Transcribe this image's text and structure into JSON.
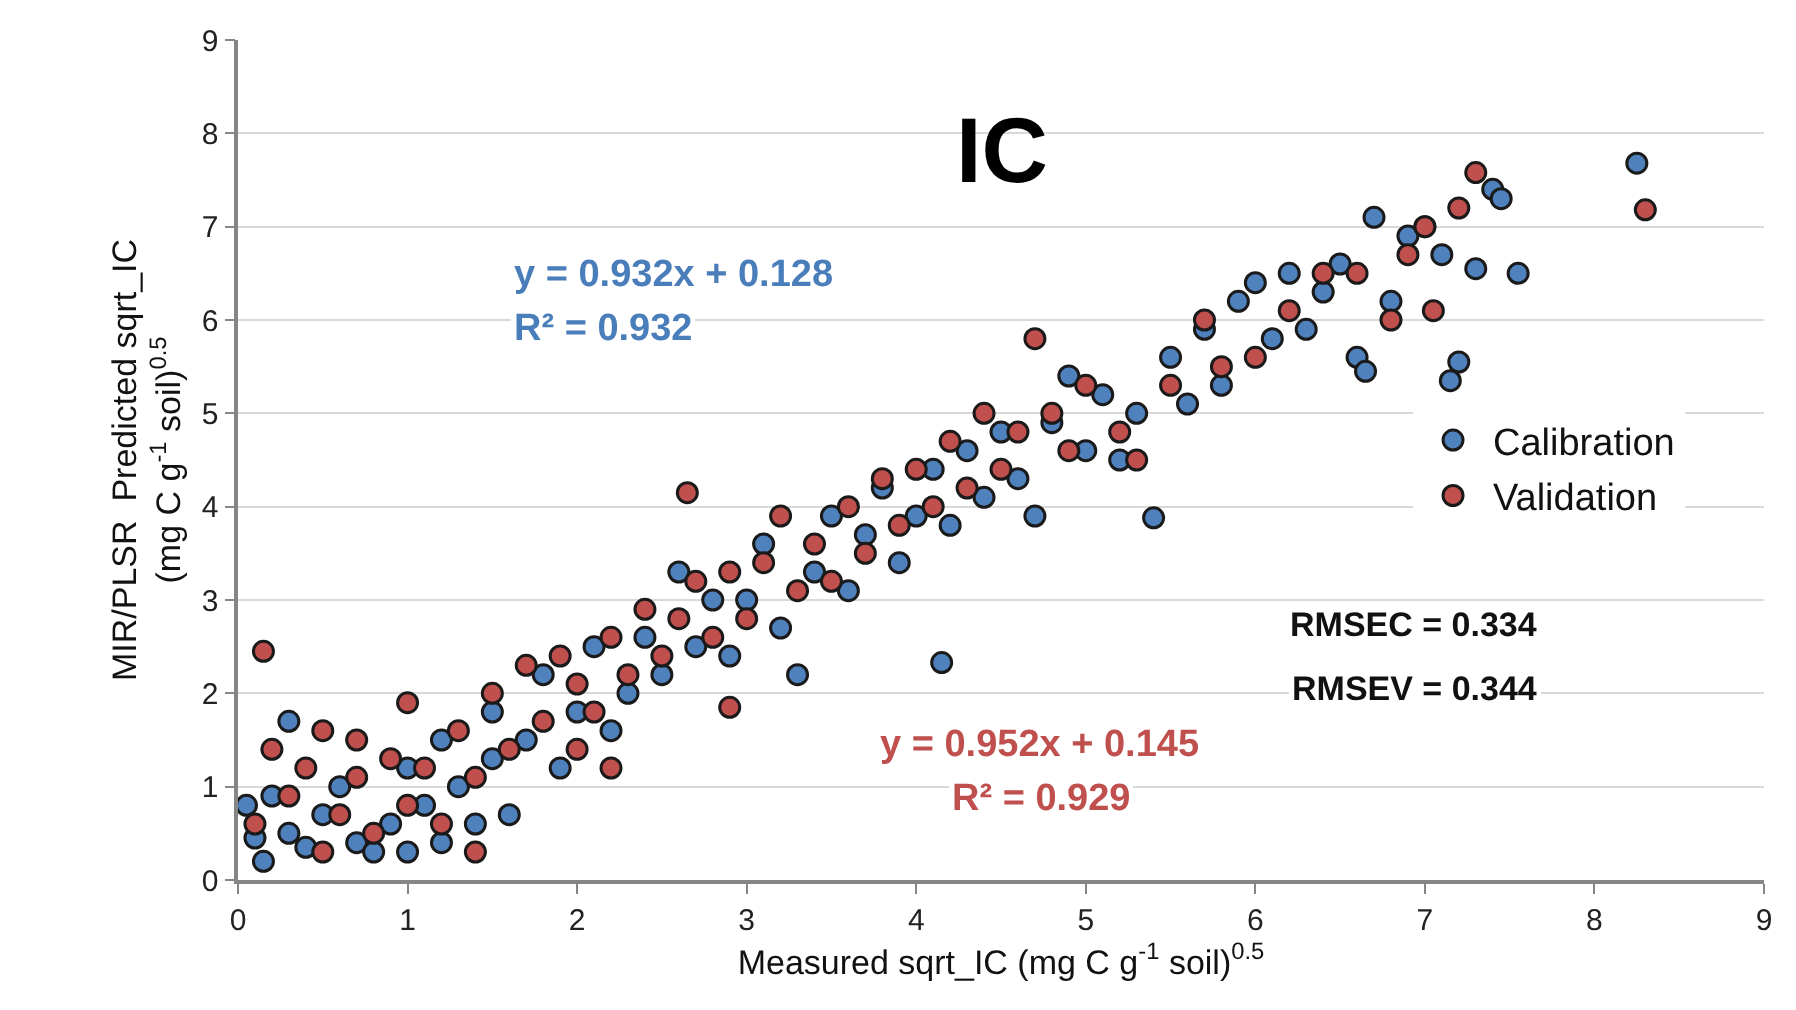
{
  "chart_data": {
    "type": "scatter",
    "title": "IC",
    "xlabel": "Measured sqrt_IC (mg C g$^{-1}$ soil)$^{0.5}$",
    "ylabel": "MIR/PLSR  Predicted sqrt_IC\n(mg C g$^{-1}$ soil)$^{0.5}$",
    "xlim": [
      0,
      9
    ],
    "ylim": [
      0,
      9
    ],
    "xticks": [
      0,
      1,
      2,
      3,
      4,
      5,
      6,
      7,
      8,
      9
    ],
    "yticks": [
      0,
      1,
      2,
      3,
      4,
      5,
      6,
      7,
      8,
      9
    ],
    "grid": "y",
    "legend": "right",
    "marker": "circle",
    "annotations": [
      "y = 0.932x + 0.128",
      "R² = 0.932",
      "y = 0.952x + 0.145",
      "R² = 0.929",
      "RMSEC = 0.334",
      "RMSEV = 0.344"
    ],
    "series": [
      {
        "name": "Calibration",
        "color": "#4f81bd",
        "x": [
          0.05,
          0.15,
          0.1,
          0.2,
          0.3,
          0.3,
          0.4,
          0.5,
          0.6,
          0.7,
          0.8,
          0.9,
          1.0,
          1.0,
          1.1,
          1.2,
          1.2,
          1.3,
          1.4,
          1.5,
          1.5,
          1.6,
          1.7,
          1.8,
          1.9,
          2.0,
          2.1,
          2.2,
          2.3,
          2.4,
          2.5,
          2.6,
          2.7,
          2.8,
          2.9,
          3.0,
          3.1,
          3.2,
          3.3,
          3.4,
          3.5,
          3.6,
          3.7,
          3.8,
          3.9,
          4.0,
          4.1,
          4.15,
          4.2,
          4.3,
          4.4,
          4.5,
          4.6,
          4.7,
          4.8,
          4.9,
          5.0,
          5.1,
          5.2,
          5.3,
          5.4,
          5.5,
          5.6,
          5.7,
          5.8,
          5.9,
          6.0,
          6.1,
          6.2,
          6.3,
          6.4,
          6.5,
          6.6,
          6.65,
          6.7,
          6.8,
          6.9,
          7.0,
          7.1,
          7.15,
          7.2,
          7.3,
          7.4,
          7.45,
          7.55,
          8.25
        ],
        "values": [
          0.8,
          0.2,
          0.45,
          0.9,
          0.5,
          1.7,
          0.35,
          0.7,
          1.0,
          0.4,
          0.3,
          0.6,
          0.3,
          1.2,
          0.8,
          0.4,
          1.5,
          1.0,
          0.6,
          1.8,
          1.3,
          0.7,
          1.5,
          2.2,
          1.2,
          1.8,
          2.5,
          1.6,
          2.0,
          2.6,
          2.2,
          3.3,
          2.5,
          3.0,
          2.4,
          3.0,
          3.6,
          2.7,
          2.2,
          3.3,
          3.9,
          3.1,
          3.7,
          4.2,
          3.4,
          3.9,
          4.4,
          2.33,
          3.8,
          4.6,
          4.1,
          4.8,
          4.3,
          3.9,
          4.9,
          5.4,
          4.6,
          5.2,
          4.5,
          5.0,
          3.88,
          5.6,
          5.1,
          5.9,
          5.3,
          6.2,
          6.4,
          5.8,
          6.5,
          5.9,
          6.3,
          6.6,
          5.6,
          5.45,
          7.1,
          6.2,
          6.9,
          7.0,
          6.7,
          5.35,
          5.55,
          6.55,
          7.4,
          7.3,
          6.5,
          7.68
        ]
      },
      {
        "name": "Validation",
        "color": "#c0504d",
        "x": [
          0.15,
          0.1,
          0.2,
          0.3,
          0.4,
          0.5,
          0.5,
          0.6,
          0.7,
          0.7,
          0.8,
          0.9,
          1.0,
          1.0,
          1.1,
          1.2,
          1.3,
          1.4,
          1.4,
          1.5,
          1.6,
          1.7,
          1.8,
          1.9,
          2.0,
          2.0,
          2.1,
          2.2,
          2.2,
          2.3,
          2.4,
          2.5,
          2.6,
          2.65,
          2.7,
          2.8,
          2.9,
          2.9,
          3.0,
          3.1,
          3.2,
          3.3,
          3.4,
          3.5,
          3.6,
          3.7,
          3.8,
          3.9,
          4.0,
          4.1,
          4.2,
          4.3,
          4.4,
          4.5,
          4.6,
          4.7,
          4.8,
          4.9,
          5.0,
          5.2,
          5.3,
          5.5,
          5.7,
          5.8,
          6.0,
          6.2,
          6.4,
          6.6,
          6.8,
          6.9,
          7.05,
          7.0,
          7.2,
          7.3,
          8.3
        ],
        "values": [
          2.45,
          0.6,
          1.4,
          0.9,
          1.2,
          0.3,
          1.6,
          0.7,
          1.1,
          1.5,
          0.5,
          1.3,
          0.8,
          1.9,
          1.2,
          0.6,
          1.6,
          0.3,
          1.1,
          2.0,
          1.4,
          2.3,
          1.7,
          2.4,
          1.4,
          2.1,
          1.8,
          2.6,
          1.2,
          2.2,
          2.9,
          2.4,
          2.8,
          4.15,
          3.2,
          2.6,
          1.85,
          3.3,
          2.8,
          3.4,
          3.9,
          3.1,
          3.6,
          3.2,
          4.0,
          3.5,
          4.3,
          3.8,
          4.4,
          4.0,
          4.7,
          4.2,
          5.0,
          4.4,
          4.8,
          5.8,
          5.0,
          4.6,
          5.3,
          4.8,
          4.5,
          5.3,
          6.0,
          5.5,
          5.6,
          6.1,
          6.5,
          6.5,
          6.0,
          6.7,
          6.1,
          7.0,
          7.2,
          7.58,
          7.18
        ]
      }
    ]
  }
}
